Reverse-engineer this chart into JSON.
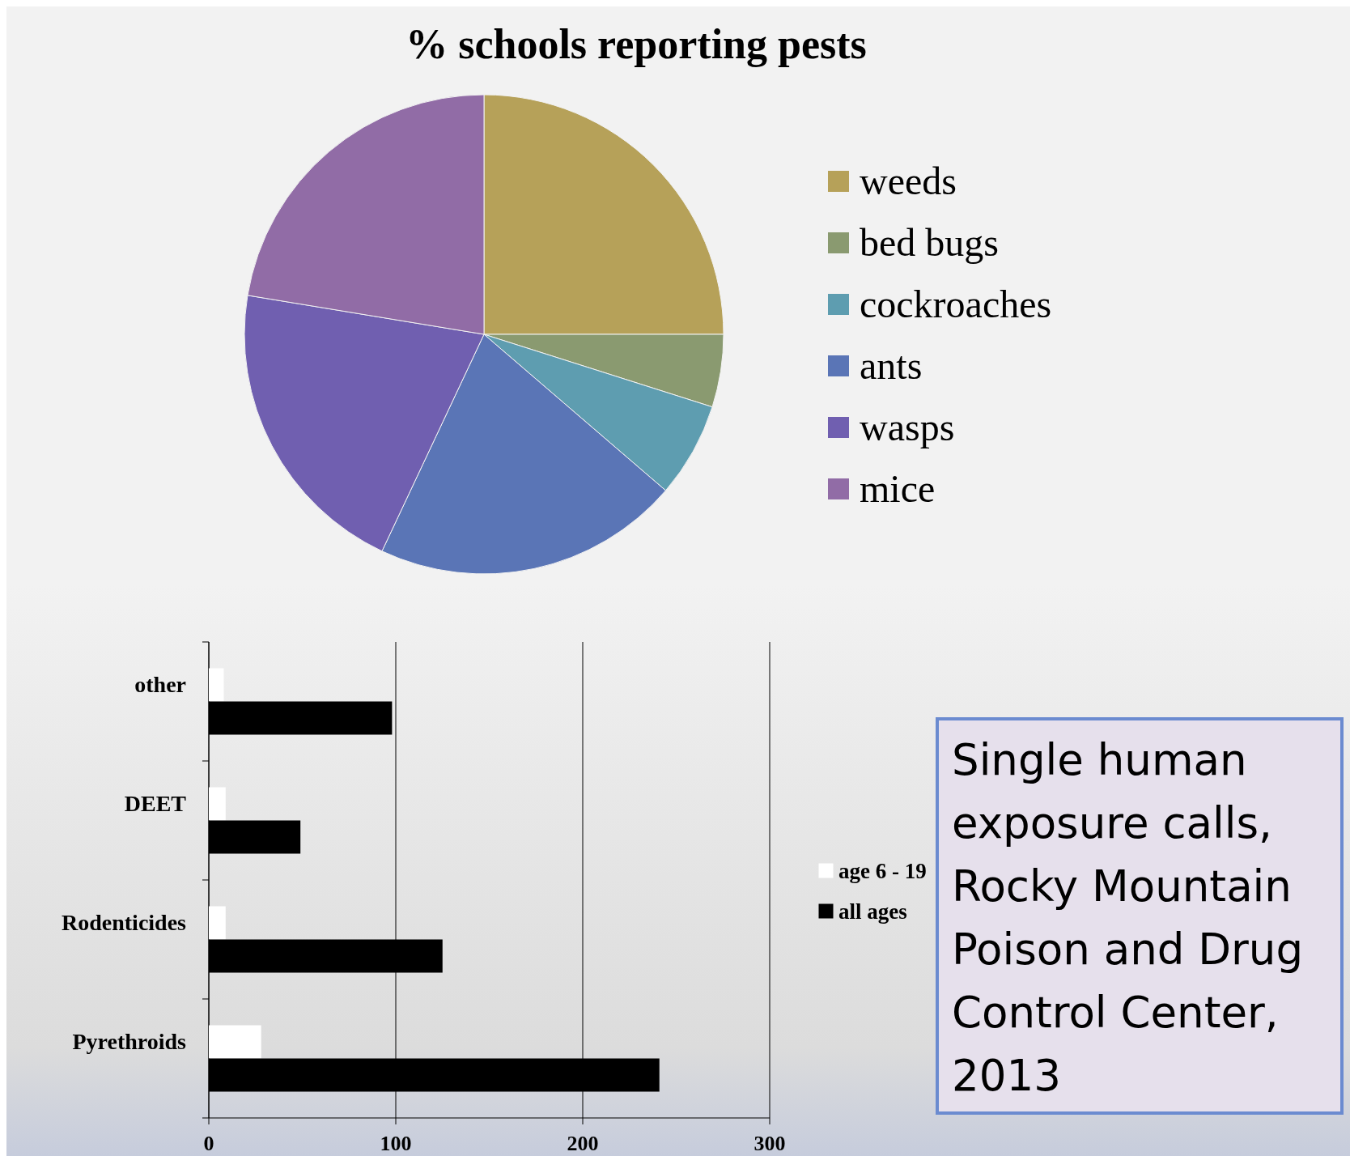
{
  "chart_data": [
    {
      "type": "pie",
      "title": "% schools reporting pests",
      "categories": [
        "weeds",
        "bed bugs",
        "cockroaches",
        "ants",
        "wasps",
        "mice"
      ],
      "values": [
        25,
        4.9,
        6.4,
        20.7,
        20.6,
        22.4
      ],
      "colors": [
        "#b6a159",
        "#8a9a70",
        "#5e9db0",
        "#5a75b6",
        "#705fb0",
        "#916ca6"
      ],
      "legend": "right"
    },
    {
      "type": "bar",
      "orientation": "horizontal",
      "categories": [
        "other",
        "DEET",
        "Rodenticides",
        "Pyrethroids"
      ],
      "series": [
        {
          "name": "age 6 - 19",
          "color": "#ffffff",
          "values": [
            8,
            9,
            9,
            28
          ]
        },
        {
          "name": "all ages",
          "color": "#000000",
          "values": [
            98,
            49,
            125,
            241
          ]
        }
      ],
      "xlim": [
        0,
        300
      ],
      "xticks": [
        0,
        100,
        200,
        300
      ],
      "grid": "x",
      "legend": "right",
      "annotations": [
        "Single human exposure calls, Rocky Mountain Poison and Drug Control Center, 2013"
      ]
    }
  ]
}
